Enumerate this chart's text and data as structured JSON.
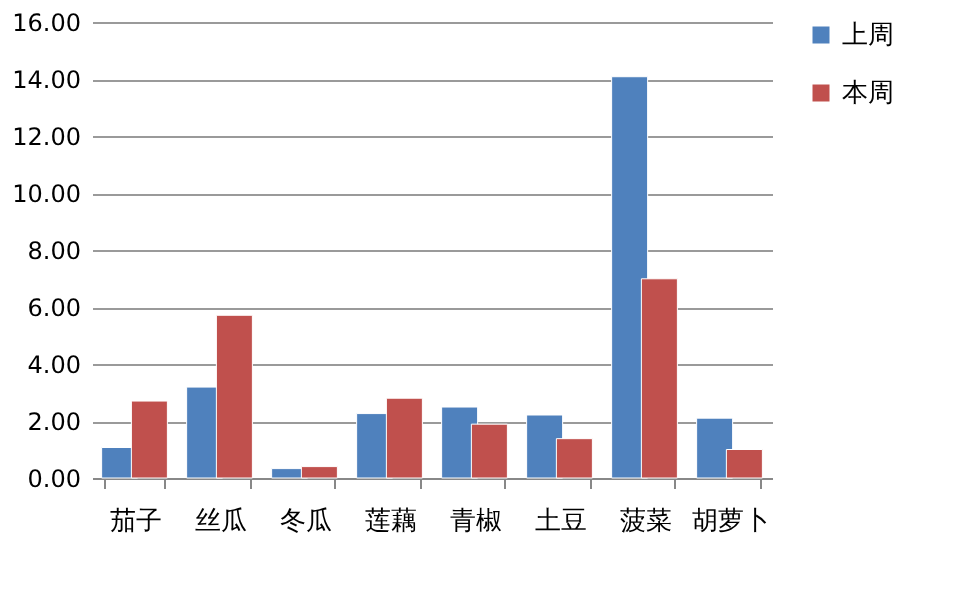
{
  "chart_data": {
    "type": "bar",
    "categories": [
      "茄子",
      "丝瓜",
      "冬瓜",
      "莲藕",
      "青椒",
      "土豆",
      "菠菜",
      "胡萝卜"
    ],
    "series": [
      {
        "name": "上周",
        "color": "#4f81bd",
        "values": [
          1.07,
          3.19,
          0.33,
          2.26,
          2.49,
          2.21,
          14.08,
          2.1
        ]
      },
      {
        "name": "本周",
        "color": "#c0504d",
        "values": [
          2.7,
          5.71,
          0.4,
          2.8,
          1.89,
          1.38,
          6.99,
          1.0
        ]
      }
    ],
    "ylim": [
      0,
      16
    ],
    "yticks": [
      {
        "value": 0,
        "label": "0.00"
      },
      {
        "value": 2,
        "label": "2.00"
      },
      {
        "value": 4,
        "label": "4.00"
      },
      {
        "value": 6,
        "label": "6.00"
      },
      {
        "value": 8,
        "label": "8.00"
      },
      {
        "value": 10,
        "label": "10.00"
      },
      {
        "value": 12,
        "label": "12.00"
      },
      {
        "value": 14,
        "label": "14.00"
      },
      {
        "value": 16,
        "label": "16.00"
      }
    ],
    "grid": "y",
    "legend": "right"
  }
}
